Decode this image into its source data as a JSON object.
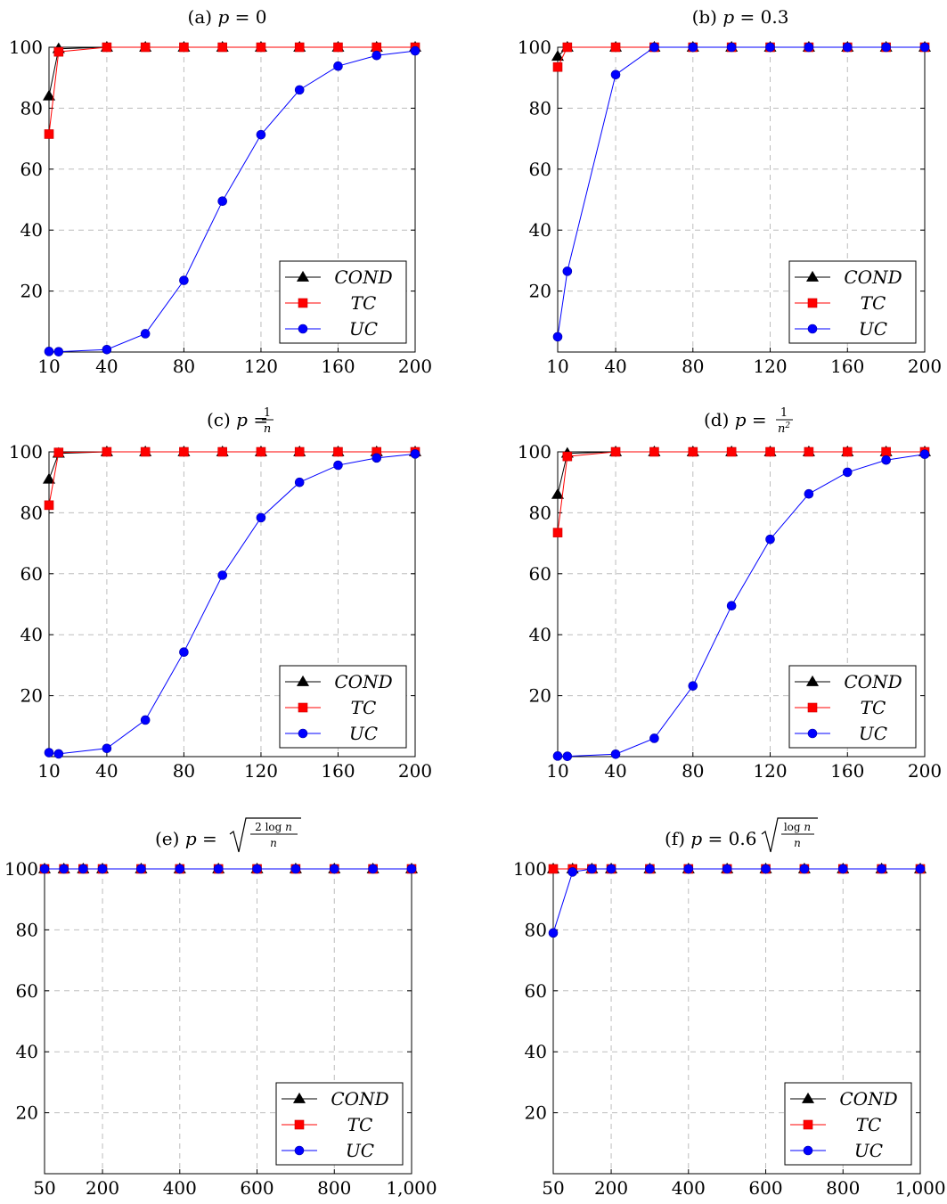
{
  "chart_data": [
    {
      "type": "line",
      "title": "(a) p = 0",
      "x": [
        10,
        15,
        40,
        60,
        80,
        100,
        120,
        140,
        160,
        180,
        200
      ],
      "xticks": [
        10,
        40,
        80,
        120,
        160,
        200
      ],
      "xtick_labels": [
        "10",
        "40",
        "80",
        "120",
        "160",
        "200"
      ],
      "xlim": [
        10,
        200
      ],
      "yticks": [
        20,
        40,
        60,
        80,
        100
      ],
      "ylim": [
        0,
        100
      ],
      "grid": true,
      "legend": "bottom-right",
      "series": [
        {
          "name": "COND",
          "color": "#000000",
          "marker": "triangle",
          "values": [
            84,
            99.5,
            100,
            100,
            100,
            100,
            100,
            100,
            100,
            100,
            100
          ]
        },
        {
          "name": "TC",
          "color": "#ff0000",
          "marker": "square",
          "values": [
            71.5,
            98.5,
            100,
            100,
            100,
            100,
            100,
            100,
            100,
            100,
            100
          ]
        },
        {
          "name": "UC",
          "color": "#0000ff",
          "marker": "circle",
          "values": [
            0.2,
            0.1,
            0.8,
            6,
            23.5,
            49.5,
            71.3,
            86,
            93.8,
            97.3,
            98.8
          ]
        }
      ]
    },
    {
      "type": "line",
      "title": "(b) p = 0.3",
      "x": [
        10,
        15,
        40,
        60,
        80,
        100,
        120,
        140,
        160,
        180,
        200
      ],
      "xticks": [
        10,
        40,
        80,
        120,
        160,
        200
      ],
      "xtick_labels": [
        "10",
        "40",
        "80",
        "120",
        "160",
        "200"
      ],
      "xlim": [
        10,
        200
      ],
      "yticks": [
        20,
        40,
        60,
        80,
        100
      ],
      "ylim": [
        0,
        100
      ],
      "grid": true,
      "legend": "bottom-right",
      "series": [
        {
          "name": "COND",
          "color": "#000000",
          "marker": "triangle",
          "values": [
            97,
            100,
            100,
            100,
            100,
            100,
            100,
            100,
            100,
            100,
            100
          ]
        },
        {
          "name": "TC",
          "color": "#ff0000",
          "marker": "square",
          "values": [
            93.5,
            100,
            100,
            100,
            100,
            100,
            100,
            100,
            100,
            100,
            100
          ]
        },
        {
          "name": "UC",
          "color": "#0000ff",
          "marker": "circle",
          "values": [
            5,
            26.5,
            91,
            100,
            100,
            100,
            100,
            100,
            100,
            100,
            100
          ]
        }
      ]
    },
    {
      "type": "line",
      "title": "(c) p = 1/n",
      "x": [
        10,
        15,
        40,
        60,
        80,
        100,
        120,
        140,
        160,
        180,
        200
      ],
      "xticks": [
        10,
        40,
        80,
        120,
        160,
        200
      ],
      "xtick_labels": [
        "10",
        "40",
        "80",
        "120",
        "160",
        "200"
      ],
      "xlim": [
        10,
        200
      ],
      "yticks": [
        20,
        40,
        60,
        80,
        100
      ],
      "ylim": [
        0,
        100
      ],
      "grid": true,
      "legend": "bottom-right",
      "series": [
        {
          "name": "COND",
          "color": "#000000",
          "marker": "triangle",
          "values": [
            91,
            99.5,
            100,
            100,
            100,
            100,
            100,
            100,
            100,
            100,
            100
          ]
        },
        {
          "name": "TC",
          "color": "#ff0000",
          "marker": "square",
          "values": [
            82.5,
            99.8,
            100,
            100,
            100,
            100,
            100,
            100,
            100,
            100,
            100
          ]
        },
        {
          "name": "UC",
          "color": "#0000ff",
          "marker": "circle",
          "values": [
            1.3,
            0.9,
            2.7,
            12,
            34.3,
            59.5,
            78.4,
            90,
            95.6,
            98,
            99.3
          ]
        }
      ]
    },
    {
      "type": "line",
      "title": "(d) p = 1/n²",
      "x": [
        10,
        15,
        40,
        60,
        80,
        100,
        120,
        140,
        160,
        180,
        200
      ],
      "xticks": [
        10,
        40,
        80,
        120,
        160,
        200
      ],
      "xtick_labels": [
        "10",
        "40",
        "80",
        "120",
        "160",
        "200"
      ],
      "xlim": [
        10,
        200
      ],
      "yticks": [
        20,
        40,
        60,
        80,
        100
      ],
      "ylim": [
        0,
        100
      ],
      "grid": true,
      "legend": "bottom-right",
      "series": [
        {
          "name": "COND",
          "color": "#000000",
          "marker": "triangle",
          "values": [
            86,
            99.5,
            100,
            100,
            100,
            100,
            100,
            100,
            100,
            100,
            100
          ]
        },
        {
          "name": "TC",
          "color": "#ff0000",
          "marker": "square",
          "values": [
            73.5,
            98.5,
            100,
            100,
            100,
            100,
            100,
            100,
            100,
            100,
            100
          ]
        },
        {
          "name": "UC",
          "color": "#0000ff",
          "marker": "circle",
          "values": [
            0.2,
            0.1,
            0.8,
            6,
            23.2,
            49.5,
            71.3,
            86.2,
            93.3,
            97.3,
            99.2
          ]
        }
      ]
    },
    {
      "type": "line",
      "title": "(e) p = √(2 log n / n)",
      "x": [
        50,
        100,
        150,
        200,
        300,
        400,
        500,
        600,
        700,
        800,
        900,
        1000
      ],
      "xticks": [
        50,
        200,
        400,
        600,
        800,
        1000
      ],
      "xtick_labels": [
        "50",
        "200",
        "400",
        "600",
        "800",
        "1,000"
      ],
      "xlim": [
        50,
        1000
      ],
      "yticks": [
        20,
        40,
        60,
        80,
        100
      ],
      "ylim": [
        0,
        100
      ],
      "grid": true,
      "legend": "bottom-right",
      "series": [
        {
          "name": "COND",
          "color": "#000000",
          "marker": "triangle",
          "values": [
            100,
            100,
            100,
            100,
            100,
            100,
            100,
            100,
            100,
            100,
            100,
            100
          ]
        },
        {
          "name": "TC",
          "color": "#ff0000",
          "marker": "square",
          "values": [
            100,
            100,
            100,
            100,
            100,
            100,
            100,
            100,
            100,
            100,
            100,
            100
          ]
        },
        {
          "name": "UC",
          "color": "#0000ff",
          "marker": "circle",
          "values": [
            100,
            100,
            100,
            100,
            100,
            100,
            100,
            100,
            100,
            100,
            100,
            100
          ]
        }
      ]
    },
    {
      "type": "line",
      "title": "(f) p = 0.6 √(log n / n)",
      "x": [
        50,
        100,
        150,
        200,
        300,
        400,
        500,
        600,
        700,
        800,
        900,
        1000
      ],
      "xticks": [
        50,
        200,
        400,
        600,
        800,
        1000
      ],
      "xtick_labels": [
        "50",
        "200",
        "400",
        "600",
        "800",
        "1,000"
      ],
      "xlim": [
        50,
        1000
      ],
      "yticks": [
        20,
        40,
        60,
        80,
        100
      ],
      "ylim": [
        0,
        100
      ],
      "grid": true,
      "legend": "bottom-right",
      "series": [
        {
          "name": "COND",
          "color": "#000000",
          "marker": "triangle",
          "values": [
            100,
            100,
            100,
            100,
            100,
            100,
            100,
            100,
            100,
            100,
            100,
            100
          ]
        },
        {
          "name": "TC",
          "color": "#ff0000",
          "marker": "square",
          "values": [
            100,
            100,
            100,
            100,
            100,
            100,
            100,
            100,
            100,
            100,
            100,
            100
          ]
        },
        {
          "name": "UC",
          "color": "#0000ff",
          "marker": "circle",
          "values": [
            79,
            99,
            100,
            100,
            100,
            100,
            100,
            100,
            100,
            100,
            100,
            100
          ]
        }
      ]
    }
  ]
}
